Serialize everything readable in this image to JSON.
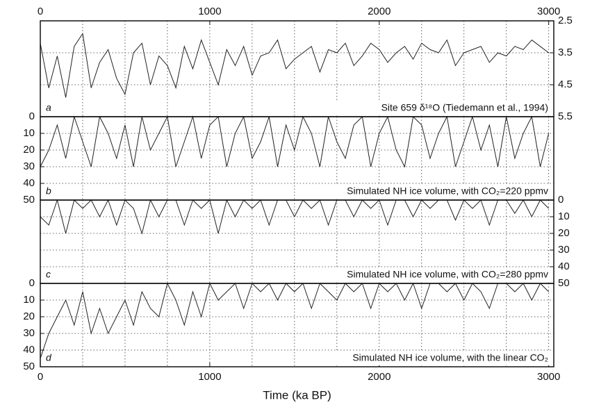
{
  "chart_data": [
    {
      "type": "line",
      "annotation": "Site 659 δ¹⁸O (Tiedemann et al., 1994)",
      "panel_label": "a",
      "color": "#222222",
      "x": [
        0,
        50,
        100,
        150,
        200,
        250,
        300,
        350,
        400,
        450,
        500,
        550,
        600,
        650,
        700,
        750,
        800,
        850,
        900,
        950,
        1000,
        1050,
        1100,
        1150,
        1200,
        1250,
        1300,
        1350,
        1400,
        1450,
        1500,
        1550,
        1600,
        1650,
        1700,
        1750,
        1800,
        1850,
        1900,
        1950,
        2000,
        2050,
        2100,
        2150,
        2200,
        2250,
        2300,
        2350,
        2400,
        2450,
        2500,
        2550,
        2600,
        2650,
        2700,
        2750,
        2800,
        2850,
        2900,
        2950,
        3000
      ],
      "values": [
        3.2,
        4.6,
        3.6,
        4.9,
        3.3,
        2.9,
        4.6,
        3.8,
        3.4,
        4.3,
        4.8,
        3.5,
        3.2,
        4.5,
        3.6,
        3.9,
        4.6,
        3.3,
        4.0,
        3.1,
        3.8,
        4.5,
        3.4,
        3.9,
        3.3,
        4.2,
        3.6,
        3.5,
        3.1,
        4.0,
        3.7,
        3.5,
        3.3,
        4.1,
        3.4,
        3.5,
        3.2,
        3.9,
        3.6,
        3.2,
        3.4,
        3.8,
        3.5,
        3.3,
        3.7,
        3.2,
        3.4,
        3.5,
        3.1,
        3.9,
        3.5,
        3.4,
        3.3,
        3.8,
        3.5,
        3.6,
        3.3,
        3.4,
        3.1,
        3.3,
        3.5
      ],
      "xlim": [
        0,
        3030
      ],
      "xticks": [
        0,
        1000,
        2000,
        3000
      ],
      "xtick_side": "top",
      "xminorticks": [
        250,
        500,
        750,
        1250,
        1500,
        1750,
        2250,
        2500,
        2750
      ],
      "ylim": [
        5.5,
        2.5
      ],
      "yticks": [
        2.5,
        3.5,
        4.5,
        5.5
      ],
      "ytick_side": "right",
      "grid": true
    },
    {
      "type": "line",
      "annotation": "Simulated NH ice volume, with CO₂=220 ppmv",
      "panel_label": "b",
      "color": "#222222",
      "x": [
        0,
        50,
        100,
        150,
        200,
        250,
        300,
        350,
        400,
        450,
        500,
        550,
        600,
        650,
        700,
        750,
        800,
        850,
        900,
        950,
        1000,
        1050,
        1100,
        1150,
        1200,
        1250,
        1300,
        1350,
        1400,
        1450,
        1500,
        1550,
        1600,
        1650,
        1700,
        1750,
        1800,
        1850,
        1900,
        1950,
        2000,
        2050,
        2100,
        2150,
        2200,
        2250,
        2300,
        2350,
        2400,
        2450,
        2500,
        2550,
        2600,
        2650,
        2700,
        2750,
        2800,
        2850,
        2900,
        2950,
        3000
      ],
      "values": [
        30,
        20,
        5,
        25,
        0,
        15,
        30,
        0,
        10,
        25,
        5,
        30,
        0,
        20,
        10,
        0,
        30,
        15,
        0,
        25,
        5,
        0,
        30,
        10,
        0,
        25,
        15,
        0,
        30,
        5,
        20,
        0,
        10,
        30,
        0,
        15,
        25,
        5,
        0,
        30,
        10,
        0,
        20,
        30,
        0,
        5,
        25,
        10,
        0,
        30,
        15,
        0,
        20,
        5,
        30,
        0,
        25,
        10,
        0,
        30,
        10
      ],
      "xlim": [
        0,
        3030
      ],
      "xminorticks": [
        0,
        250,
        500,
        750,
        1000,
        1250,
        1500,
        1750,
        2000,
        2250,
        2500,
        2750,
        3000
      ],
      "ylim": [
        50,
        0
      ],
      "yticks": [
        0,
        10,
        20,
        30,
        40,
        50
      ],
      "ytick_side": "left",
      "grid": true
    },
    {
      "type": "line",
      "annotation": "Simulated NH ice volume, with CO₂=280 ppmv",
      "panel_label": "c",
      "color": "#222222",
      "x": [
        0,
        50,
        100,
        150,
        200,
        250,
        300,
        350,
        400,
        450,
        500,
        550,
        600,
        650,
        700,
        750,
        800,
        850,
        900,
        950,
        1000,
        1050,
        1100,
        1150,
        1200,
        1250,
        1300,
        1350,
        1400,
        1450,
        1500,
        1550,
        1600,
        1650,
        1700,
        1750,
        1800,
        1850,
        1900,
        1950,
        2000,
        2050,
        2100,
        2150,
        2200,
        2250,
        2300,
        2350,
        2400,
        2450,
        2500,
        2550,
        2600,
        2650,
        2700,
        2750,
        2800,
        2850,
        2900,
        2950,
        3000
      ],
      "values": [
        10,
        15,
        0,
        20,
        0,
        5,
        0,
        10,
        0,
        15,
        0,
        5,
        20,
        0,
        10,
        0,
        0,
        15,
        0,
        5,
        0,
        20,
        0,
        10,
        0,
        5,
        0,
        15,
        0,
        0,
        10,
        0,
        5,
        0,
        15,
        0,
        0,
        10,
        0,
        5,
        0,
        15,
        0,
        0,
        10,
        0,
        5,
        0,
        0,
        12,
        0,
        5,
        0,
        15,
        0,
        0,
        8,
        0,
        10,
        0,
        5
      ],
      "xlim": [
        0,
        3030
      ],
      "xminorticks": [
        0,
        250,
        500,
        750,
        1000,
        1250,
        1500,
        1750,
        2000,
        2250,
        2500,
        2750,
        3000
      ],
      "ylim": [
        50,
        0
      ],
      "yticks": [
        0,
        10,
        20,
        30,
        40,
        50
      ],
      "ytick_side": "right",
      "grid": true
    },
    {
      "type": "line",
      "annotation": "Simulated NH ice volume, with the linear CO₂",
      "panel_label": "d",
      "color": "#222222",
      "x": [
        0,
        50,
        100,
        150,
        200,
        250,
        300,
        350,
        400,
        450,
        500,
        550,
        600,
        650,
        700,
        750,
        800,
        850,
        900,
        950,
        1000,
        1050,
        1100,
        1150,
        1200,
        1250,
        1300,
        1350,
        1400,
        1450,
        1500,
        1550,
        1600,
        1650,
        1700,
        1750,
        1800,
        1850,
        1900,
        1950,
        2000,
        2050,
        2100,
        2150,
        2200,
        2250,
        2300,
        2350,
        2400,
        2450,
        2500,
        2550,
        2600,
        2650,
        2700,
        2750,
        2800,
        2850,
        2900,
        2950,
        3000
      ],
      "values": [
        45,
        30,
        20,
        10,
        25,
        5,
        30,
        15,
        30,
        20,
        10,
        25,
        5,
        15,
        20,
        0,
        10,
        25,
        5,
        20,
        0,
        10,
        5,
        0,
        15,
        0,
        5,
        0,
        10,
        0,
        5,
        0,
        15,
        0,
        5,
        10,
        0,
        5,
        0,
        15,
        0,
        5,
        0,
        10,
        0,
        15,
        0,
        0,
        5,
        0,
        10,
        0,
        5,
        15,
        0,
        0,
        5,
        0,
        10,
        0,
        5
      ],
      "xlim": [
        0,
        3030
      ],
      "xticks": [
        0,
        1000,
        2000,
        3000
      ],
      "xtick_side": "bottom",
      "xlabel": "Time (ka BP)",
      "xminorticks": [
        250,
        500,
        750,
        1250,
        1500,
        1750,
        2250,
        2500,
        2750
      ],
      "ylim": [
        50,
        0
      ],
      "yticks": [
        0,
        10,
        20,
        30,
        40,
        50
      ],
      "ytick_side": "left",
      "grid": true
    }
  ]
}
